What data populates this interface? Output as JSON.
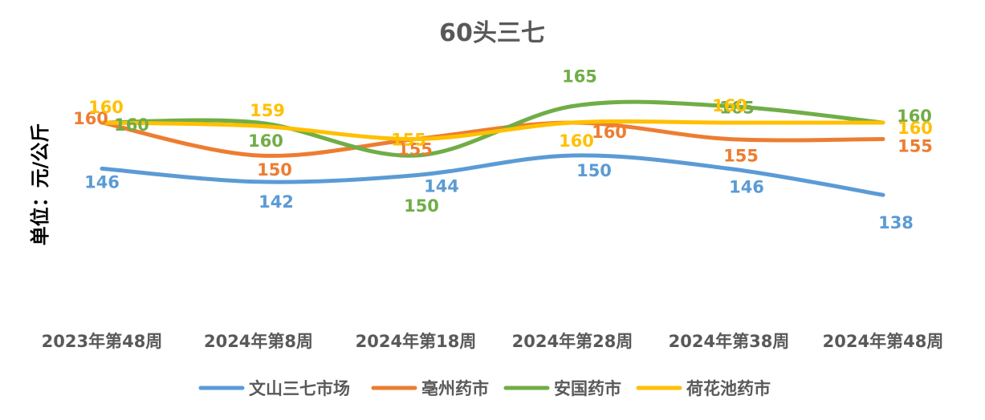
{
  "chart_data": {
    "type": "line",
    "title": "60头三七",
    "ylabel": "单位：元/公斤",
    "xlabel": "",
    "categories": [
      "2023年第48周",
      "2024年第8周",
      "2024年第18周",
      "2024年第28周",
      "2024年第38周",
      "2024年第48周"
    ],
    "ylim": [
      100,
      170
    ],
    "grid": false,
    "smooth": true,
    "legend_position": "bottom",
    "series": [
      {
        "name": "文山三七市场",
        "color": "#5B9BD5",
        "values": [
          146,
          142,
          144,
          150,
          146,
          138
        ]
      },
      {
        "name": "亳州药市",
        "color": "#ED7D31",
        "values": [
          160,
          150,
          155,
          160,
          155,
          155
        ]
      },
      {
        "name": "安国药市",
        "color": "#70AD47",
        "values": [
          160,
          160,
          150,
          165,
          165,
          160
        ]
      },
      {
        "name": "荷花池药市",
        "color": "#FFC000",
        "values": [
          160,
          159,
          155,
          160,
          160,
          160
        ]
      }
    ]
  }
}
